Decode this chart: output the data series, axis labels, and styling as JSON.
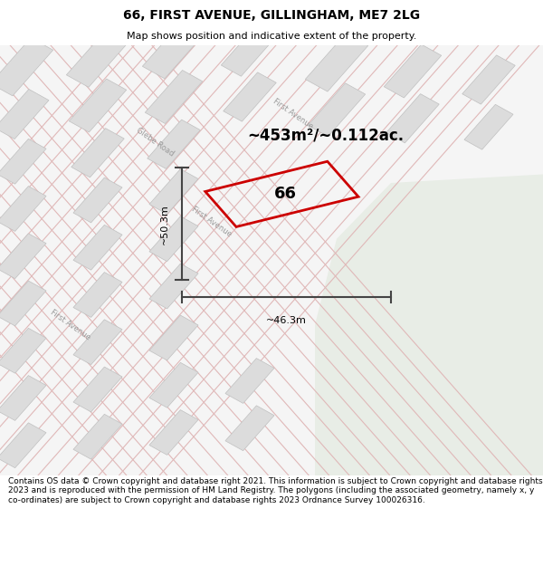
{
  "title": "66, FIRST AVENUE, GILLINGHAM, ME7 2LG",
  "subtitle": "Map shows position and indicative extent of the property.",
  "area_label": "~453m²/~0.112ac.",
  "dim_width": "~46.3m",
  "dim_height": "~50.3m",
  "plot_number": "66",
  "footer": "Contains OS data © Crown copyright and database right 2021. This information is subject to Crown copyright and database rights 2023 and is reproduced with the permission of HM Land Registry. The polygons (including the associated geometry, namely x, y co-ordinates) are subject to Crown copyright and database rights 2023 Ordnance Survey 100026316.",
  "map_bg": "#f5f5f5",
  "block_facecolor": "#dcdcdc",
  "block_edgecolor": "#c0c0c0",
  "street_line_color": "#e0b8b8",
  "red_line_color": "#cc0000",
  "green_area_color": "#e8ede6",
  "title_fontsize": 10,
  "subtitle_fontsize": 8,
  "footer_fontsize": 6.5
}
